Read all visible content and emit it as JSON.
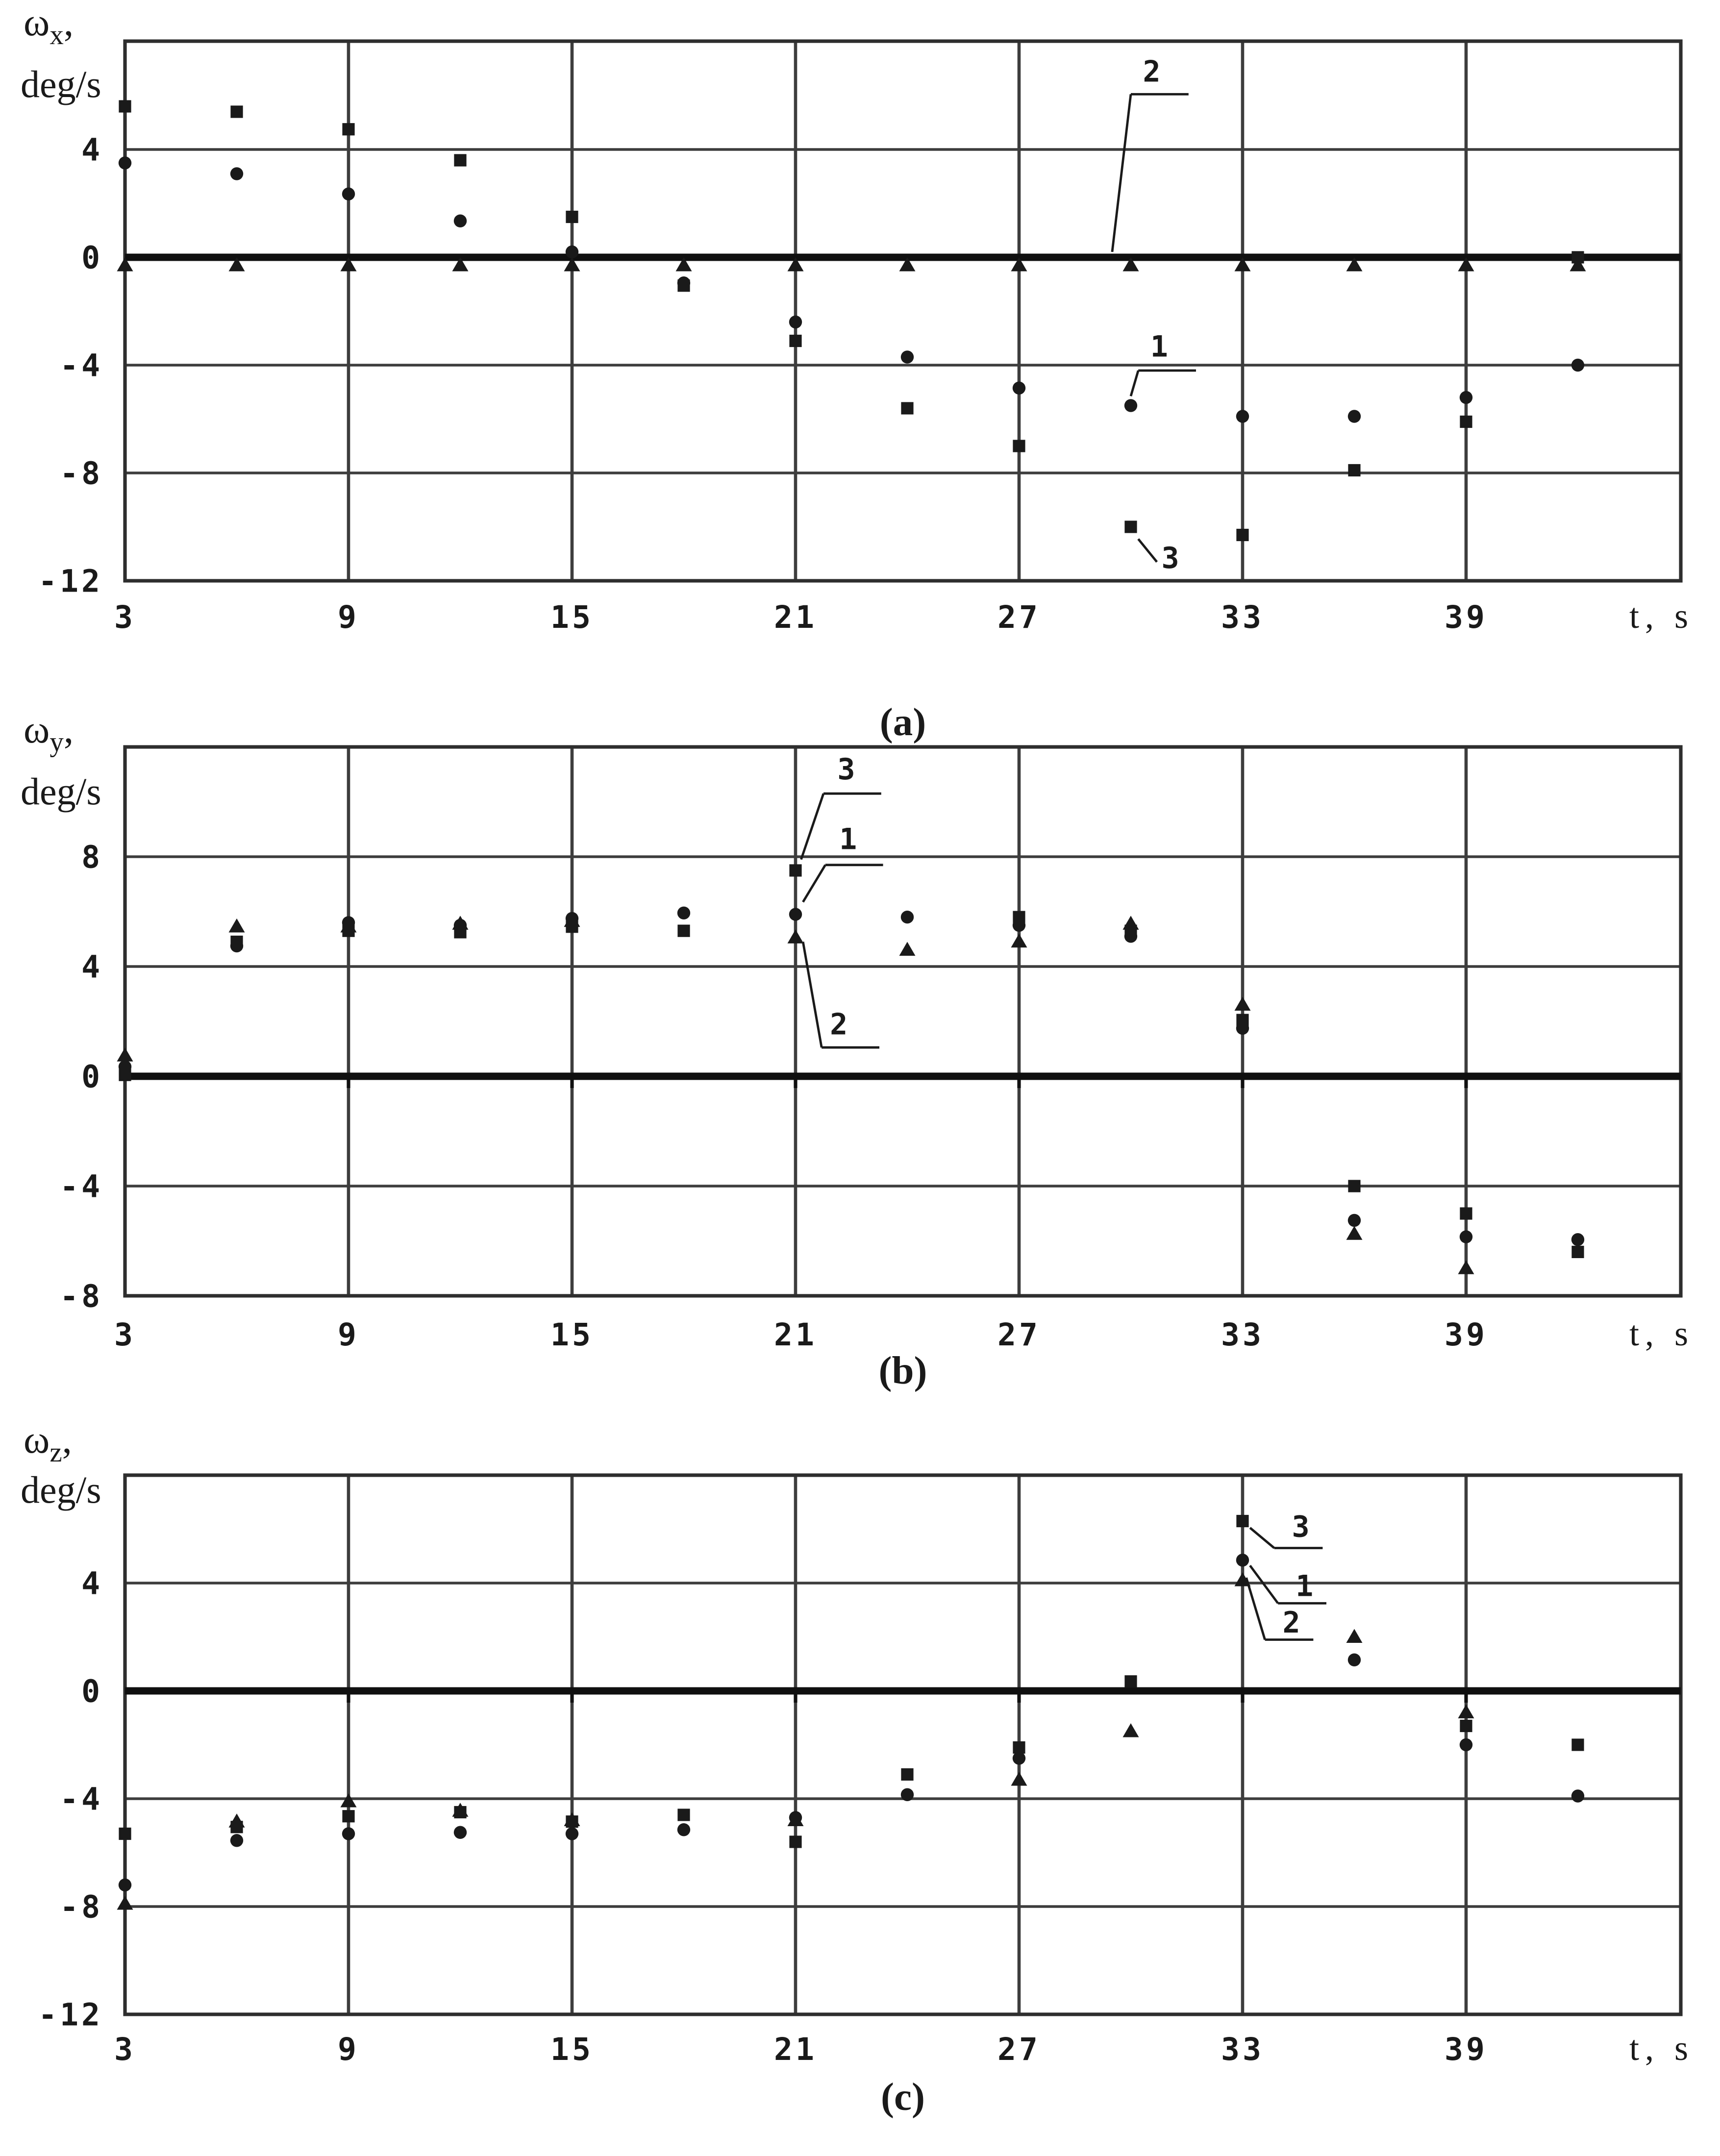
{
  "colors": {
    "background": "#ffffff",
    "ink": "#1a1a1a",
    "grid": "#3d3d3d",
    "frame": "#2e2e2e",
    "zero_axis": "#101010"
  },
  "x_axis_shared": {
    "xlabel": "t,  s",
    "xlim": [
      3,
      45.1
    ],
    "tick_step_s": 3,
    "data_t_values": [
      3,
      6,
      9,
      12,
      15,
      18,
      21,
      24,
      27,
      30,
      33,
      36,
      39,
      42
    ]
  },
  "chart_data": [
    {
      "id": "a",
      "type": "scatter",
      "caption": "(a)",
      "title": "Angular velocity ωx vs time",
      "y_label": {
        "omega": "ω",
        "sub": "x",
        "comma": ",",
        "units": "deg/s"
      },
      "x_axis_label": "t,  s",
      "xlabel": "t, s",
      "ylabel": "ωx, deg/s",
      "ylim": [
        -12,
        8
      ],
      "xlim": [
        3,
        45.1
      ],
      "grid": true,
      "x_ticks": [
        {
          "text": "3",
          "value": 3
        },
        {
          "text": "9",
          "value": 9
        },
        {
          "text": "15",
          "value": 15
        },
        {
          "text": "21",
          "value": 21
        },
        {
          "text": "27",
          "value": 27
        },
        {
          "text": "33",
          "value": 33
        },
        {
          "text": "39",
          "value": 39
        }
      ],
      "y_ticks": [
        {
          "text": "4",
          "value": 4
        },
        {
          "text": "0",
          "value": 0
        },
        {
          "text": "-4",
          "value": -4
        },
        {
          "text": "-8",
          "value": -8
        },
        {
          "text": "-12",
          "value": -12
        }
      ],
      "series": [
        {
          "name": "1",
          "marker": "circle",
          "points": [
            [
              3,
              3.5
            ],
            [
              6,
              3.1
            ],
            [
              9,
              2.35
            ],
            [
              12,
              1.35
            ],
            [
              15,
              0.2
            ],
            [
              18,
              -0.95
            ],
            [
              21,
              -2.4
            ],
            [
              24,
              -3.7
            ],
            [
              27,
              -4.85
            ],
            [
              30,
              -5.5
            ],
            [
              33,
              -5.9
            ],
            [
              36,
              -5.9
            ],
            [
              39,
              -5.2
            ],
            [
              42,
              -4.0
            ]
          ]
        },
        {
          "name": "2",
          "marker": "triangle",
          "points": [
            [
              3,
              0
            ],
            [
              6,
              0
            ],
            [
              9,
              0
            ],
            [
              12,
              0
            ],
            [
              15,
              0
            ],
            [
              18,
              0
            ],
            [
              21,
              0
            ],
            [
              24,
              0
            ],
            [
              27,
              0
            ],
            [
              30,
              0
            ],
            [
              33,
              0
            ],
            [
              36,
              0
            ],
            [
              39,
              0
            ],
            [
              42,
              0
            ]
          ]
        },
        {
          "name": "3",
          "marker": "square",
          "points": [
            [
              3,
              5.6
            ],
            [
              6,
              5.4
            ],
            [
              9,
              4.75
            ],
            [
              12,
              3.6
            ],
            [
              15,
              1.5
            ],
            [
              18,
              -1.05
            ],
            [
              21,
              -3.1
            ],
            [
              24,
              -5.6
            ],
            [
              27,
              -7.0
            ],
            [
              30,
              -10.0
            ],
            [
              33,
              -10.3
            ],
            [
              36,
              -7.9
            ],
            [
              39,
              -6.1
            ],
            [
              42,
              0
            ]
          ]
        }
      ],
      "callouts": [
        {
          "label": "2",
          "t": 30.6,
          "w": 6.9,
          "underline": [
            [
              30.0,
              6.05
            ],
            [
              31.55,
              6.05
            ]
          ],
          "leader": [
            [
              30.0,
              6.05
            ],
            [
              29.5,
              0.2
            ]
          ]
        },
        {
          "label": "1",
          "t": 30.8,
          "w": -3.3,
          "underline": [
            [
              30.2,
              -4.2
            ],
            [
              31.75,
              -4.2
            ]
          ],
          "leader": [
            [
              30.2,
              -4.2
            ],
            [
              30.0,
              -5.15
            ]
          ]
        },
        {
          "label": "3",
          "t": 31.1,
          "w": -11.15,
          "underline": null,
          "leader": [
            [
              30.2,
              -10.45
            ],
            [
              30.7,
              -11.3
            ]
          ]
        }
      ]
    },
    {
      "id": "b",
      "type": "scatter",
      "caption": "(b)",
      "title": "Angular velocity ωy vs time",
      "y_label": {
        "omega": "ω",
        "sub": "y",
        "comma": ",",
        "units": "deg/s"
      },
      "x_axis_label": "t,  s",
      "xlabel": "t, s",
      "ylabel": "ωy, deg/s",
      "ylim": [
        -8,
        12
      ],
      "xlim": [
        3,
        45.1
      ],
      "grid": true,
      "x_ticks": [
        {
          "text": "3",
          "value": 3
        },
        {
          "text": "9",
          "value": 9
        },
        {
          "text": "15",
          "value": 15
        },
        {
          "text": "21",
          "value": 21
        },
        {
          "text": "27",
          "value": 27
        },
        {
          "text": "33",
          "value": 33
        },
        {
          "text": "39",
          "value": 39
        }
      ],
      "y_ticks": [
        {
          "text": "8",
          "value": 8
        },
        {
          "text": "4",
          "value": 4
        },
        {
          "text": "0",
          "value": 0
        },
        {
          "text": "-4",
          "value": -4
        },
        {
          "text": "-8",
          "value": -8
        }
      ],
      "series": [
        {
          "name": "1",
          "marker": "circle",
          "points": [
            [
              3,
              0.35
            ],
            [
              6,
              4.75
            ],
            [
              9,
              5.6
            ],
            [
              12,
              5.5
            ],
            [
              15,
              5.75
            ],
            [
              18,
              5.95
            ],
            [
              21,
              5.9
            ],
            [
              24,
              5.8
            ],
            [
              27,
              5.5
            ],
            [
              30,
              5.1
            ],
            [
              33,
              1.75
            ],
            [
              36,
              -5.25
            ],
            [
              39,
              -5.85
            ],
            [
              42,
              -5.95
            ]
          ]
        },
        {
          "name": "2",
          "marker": "triangle",
          "points": [
            [
              3,
              1.05
            ],
            [
              6,
              5.75
            ],
            [
              9,
              5.75
            ],
            [
              12,
              5.85
            ],
            [
              15,
              5.95
            ],
            [
              18,
              null
            ],
            [
              21,
              5.35
            ],
            [
              24,
              4.9
            ],
            [
              27,
              5.2
            ],
            [
              30,
              5.85
            ],
            [
              33,
              2.9
            ],
            [
              36,
              -5.45
            ],
            [
              39,
              -6.7
            ],
            [
              42,
              null
            ]
          ]
        },
        {
          "name": "3",
          "marker": "square",
          "points": [
            [
              3,
              0.05
            ],
            [
              6,
              4.9
            ],
            [
              9,
              5.3
            ],
            [
              12,
              5.25
            ],
            [
              15,
              5.45
            ],
            [
              18,
              5.3
            ],
            [
              21,
              7.5
            ],
            [
              24,
              null
            ],
            [
              27,
              5.8
            ],
            [
              30,
              5.3
            ],
            [
              33,
              2.05
            ],
            [
              36,
              -4.0
            ],
            [
              39,
              -5.0
            ],
            [
              42,
              -6.4
            ]
          ]
        }
      ],
      "callouts": [
        {
          "label": "3",
          "t": 22.4,
          "w": 11.2,
          "underline": [
            [
              21.75,
              10.3
            ],
            [
              23.3,
              10.3
            ]
          ],
          "leader": [
            [
              21.75,
              10.3
            ],
            [
              21.15,
              7.9
            ]
          ]
        },
        {
          "label": "1",
          "t": 22.45,
          "w": 8.65,
          "underline": [
            [
              21.8,
              7.7
            ],
            [
              23.35,
              7.7
            ]
          ],
          "leader": [
            [
              21.8,
              7.7
            ],
            [
              21.2,
              6.35
            ]
          ]
        },
        {
          "label": "2",
          "t": 22.2,
          "w": 1.9,
          "underline": [
            [
              21.7,
              1.05
            ],
            [
              23.25,
              1.05
            ]
          ],
          "leader": [
            [
              21.7,
              1.05
            ],
            [
              21.2,
              4.9
            ]
          ]
        }
      ]
    },
    {
      "id": "c",
      "type": "scatter",
      "caption": "(c)",
      "title": "Angular velocity ωz vs time",
      "y_label": {
        "omega": "ω",
        "sub": "z",
        "comma": ",",
        "units": "deg/s"
      },
      "x_axis_label": "t,  s",
      "xlabel": "t, s",
      "ylabel": "ωz, deg/s",
      "ylim": [
        -12,
        8
      ],
      "xlim": [
        3,
        45.1
      ],
      "grid": true,
      "x_ticks": [
        {
          "text": "3",
          "value": 3
        },
        {
          "text": "9",
          "value": 9
        },
        {
          "text": "15",
          "value": 15
        },
        {
          "text": "21",
          "value": 21
        },
        {
          "text": "27",
          "value": 27
        },
        {
          "text": "33",
          "value": 33
        },
        {
          "text": "39",
          "value": 39
        }
      ],
      "y_ticks": [
        {
          "text": "4",
          "value": 4
        },
        {
          "text": "0",
          "value": 0
        },
        {
          "text": "-4",
          "value": -4
        },
        {
          "text": "-8",
          "value": -8
        },
        {
          "text": "-12",
          "value": -12
        }
      ],
      "series": [
        {
          "name": "1",
          "marker": "circle",
          "points": [
            [
              3,
              -7.2
            ],
            [
              6,
              -5.55
            ],
            [
              9,
              -5.3
            ],
            [
              12,
              -5.25
            ],
            [
              15,
              -5.3
            ],
            [
              18,
              -5.15
            ],
            [
              21,
              -4.7
            ],
            [
              24,
              -3.85
            ],
            [
              27,
              -2.5
            ],
            [
              30,
              null
            ],
            [
              33,
              4.85
            ],
            [
              36,
              1.15
            ],
            [
              39,
              -2.0
            ],
            [
              42,
              -3.9
            ]
          ]
        },
        {
          "name": "2",
          "marker": "triangle",
          "points": [
            [
              3,
              -7.6
            ],
            [
              6,
              -4.55
            ],
            [
              9,
              -3.8
            ],
            [
              12,
              -4.15
            ],
            [
              15,
              -4.5
            ],
            [
              18,
              null
            ],
            [
              21,
              -4.5
            ],
            [
              24,
              null
            ],
            [
              27,
              -3.0
            ],
            [
              30,
              -1.2
            ],
            [
              33,
              4.4
            ],
            [
              36,
              2.3
            ],
            [
              39,
              -0.5
            ],
            [
              42,
              null
            ]
          ]
        },
        {
          "name": "3",
          "marker": "square",
          "points": [
            [
              3,
              -5.3
            ],
            [
              6,
              -5.05
            ],
            [
              9,
              -4.65
            ],
            [
              12,
              -4.5
            ],
            [
              15,
              -4.85
            ],
            [
              18,
              -4.6
            ],
            [
              21,
              -5.6
            ],
            [
              24,
              -3.1
            ],
            [
              27,
              -2.1
            ],
            [
              30,
              0.35
            ],
            [
              33,
              6.3
            ],
            [
              36,
              null
            ],
            [
              39,
              -1.3
            ],
            [
              42,
              -2.0
            ]
          ]
        }
      ],
      "callouts": [
        {
          "label": "3",
          "t": 34.6,
          "w": 6.1,
          "underline": [
            [
              33.85,
              5.3
            ],
            [
              35.15,
              5.3
            ]
          ],
          "leader": [
            [
              33.85,
              5.3
            ],
            [
              33.2,
              6.05
            ]
          ]
        },
        {
          "label": "1",
          "t": 34.7,
          "w": 3.9,
          "underline": [
            [
              33.95,
              3.25
            ],
            [
              35.25,
              3.25
            ]
          ],
          "leader": [
            [
              33.95,
              3.25
            ],
            [
              33.2,
              4.65
            ]
          ]
        },
        {
          "label": "2",
          "t": 34.35,
          "w": 2.55,
          "underline": [
            [
              33.6,
              1.9
            ],
            [
              34.9,
              1.9
            ]
          ],
          "leader": [
            [
              33.6,
              1.9
            ],
            [
              33.1,
              4.2
            ]
          ]
        }
      ]
    }
  ]
}
